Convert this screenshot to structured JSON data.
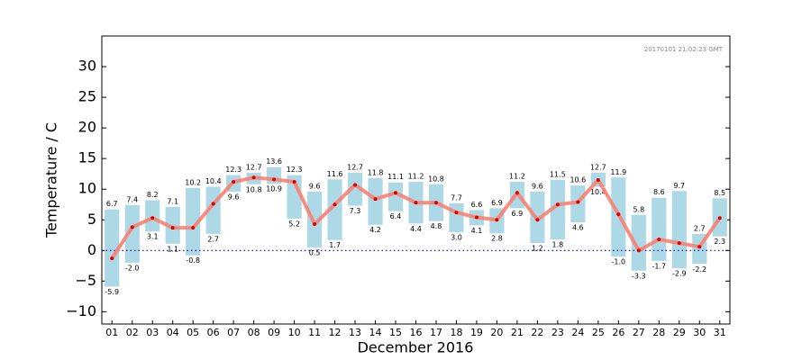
{
  "chart_data": {
    "type": "floating_bar",
    "xlabel": "December 2016",
    "ylabel": "Temperature / C",
    "annotation": "20170101 21:02:23 GMT",
    "categories": [
      "01",
      "02",
      "03",
      "04",
      "05",
      "06",
      "07",
      "08",
      "09",
      "10",
      "11",
      "12",
      "13",
      "14",
      "15",
      "16",
      "17",
      "18",
      "19",
      "20",
      "21",
      "22",
      "23",
      "24",
      "25",
      "26",
      "27",
      "28",
      "29",
      "30",
      "31"
    ],
    "highs": [
      6.7,
      7.4,
      8.2,
      7.1,
      10.2,
      10.4,
      12.3,
      12.7,
      13.6,
      12.3,
      9.6,
      11.6,
      12.7,
      11.8,
      11.1,
      11.2,
      10.8,
      7.7,
      6.6,
      6.9,
      11.2,
      9.6,
      11.5,
      10.6,
      12.7,
      11.9,
      5.8,
      8.6,
      9.7,
      2.7,
      8.5
    ],
    "high_labels": [
      "6.7",
      "7.4",
      "8.2",
      "7.1",
      "10.2",
      "10.4",
      "12.3",
      "12.7",
      "13.6",
      "12.3",
      "9.6",
      "11.6",
      "12.7",
      "11.8",
      "11.1",
      "11.2",
      "10.8",
      "7.7",
      "6.6",
      "6.9",
      "11.2",
      "9.6",
      "11.5",
      "10.6",
      "12.7",
      "11.9",
      "5.8",
      "8.6",
      "9.7",
      "2.7",
      "8.5"
    ],
    "lows": [
      -5.9,
      -2.0,
      3.1,
      1.1,
      -0.8,
      2.7,
      9.6,
      10.8,
      10.9,
      5.2,
      0.5,
      1.7,
      7.3,
      4.2,
      6.4,
      4.4,
      4.8,
      3.0,
      4.1,
      2.8,
      6.9,
      1.2,
      1.8,
      4.6,
      10.4,
      -1.0,
      -3.3,
      -1.7,
      -2.9,
      -2.2,
      2.3
    ],
    "low_labels": [
      "-5.9",
      "-2.0",
      "3.1",
      "1.1",
      "-0.8",
      "2.7",
      "9.6",
      "10.8",
      "10.9",
      "5.2",
      "0.5",
      "1.7",
      "7.3",
      "4.2",
      "6.4",
      "4.4",
      "4.8",
      "3.0",
      "4.1",
      "2.8",
      "6.9",
      "1.2",
      "1.8",
      "4.6",
      "10.4",
      "-1.0",
      "-3.3",
      "-1.7",
      "-2.9",
      "-2.2",
      "2.3"
    ],
    "bar_color": "#add8e6",
    "line": {
      "values": [
        -1.3,
        3.8,
        5.3,
        3.7,
        3.7,
        7.6,
        11.2,
        11.9,
        11.6,
        11.2,
        4.3,
        7.5,
        10.7,
        8.4,
        9.4,
        7.8,
        7.8,
        6.2,
        5.4,
        5.0,
        9.4,
        5.0,
        7.5,
        7.9,
        11.5,
        5.9,
        0.0,
        1.8,
        1.2,
        0.6,
        5.3
      ],
      "color": "#fa8072",
      "marker_color": "#dd0000"
    },
    "hline": {
      "value": 0,
      "color": "#0000cc"
    },
    "ylim": [
      -12,
      35
    ],
    "yticks": [
      {
        "value": -10,
        "label": "−10"
      },
      {
        "value": -5,
        "label": "−5"
      },
      0,
      5,
      10,
      15,
      20,
      25,
      30
    ]
  }
}
